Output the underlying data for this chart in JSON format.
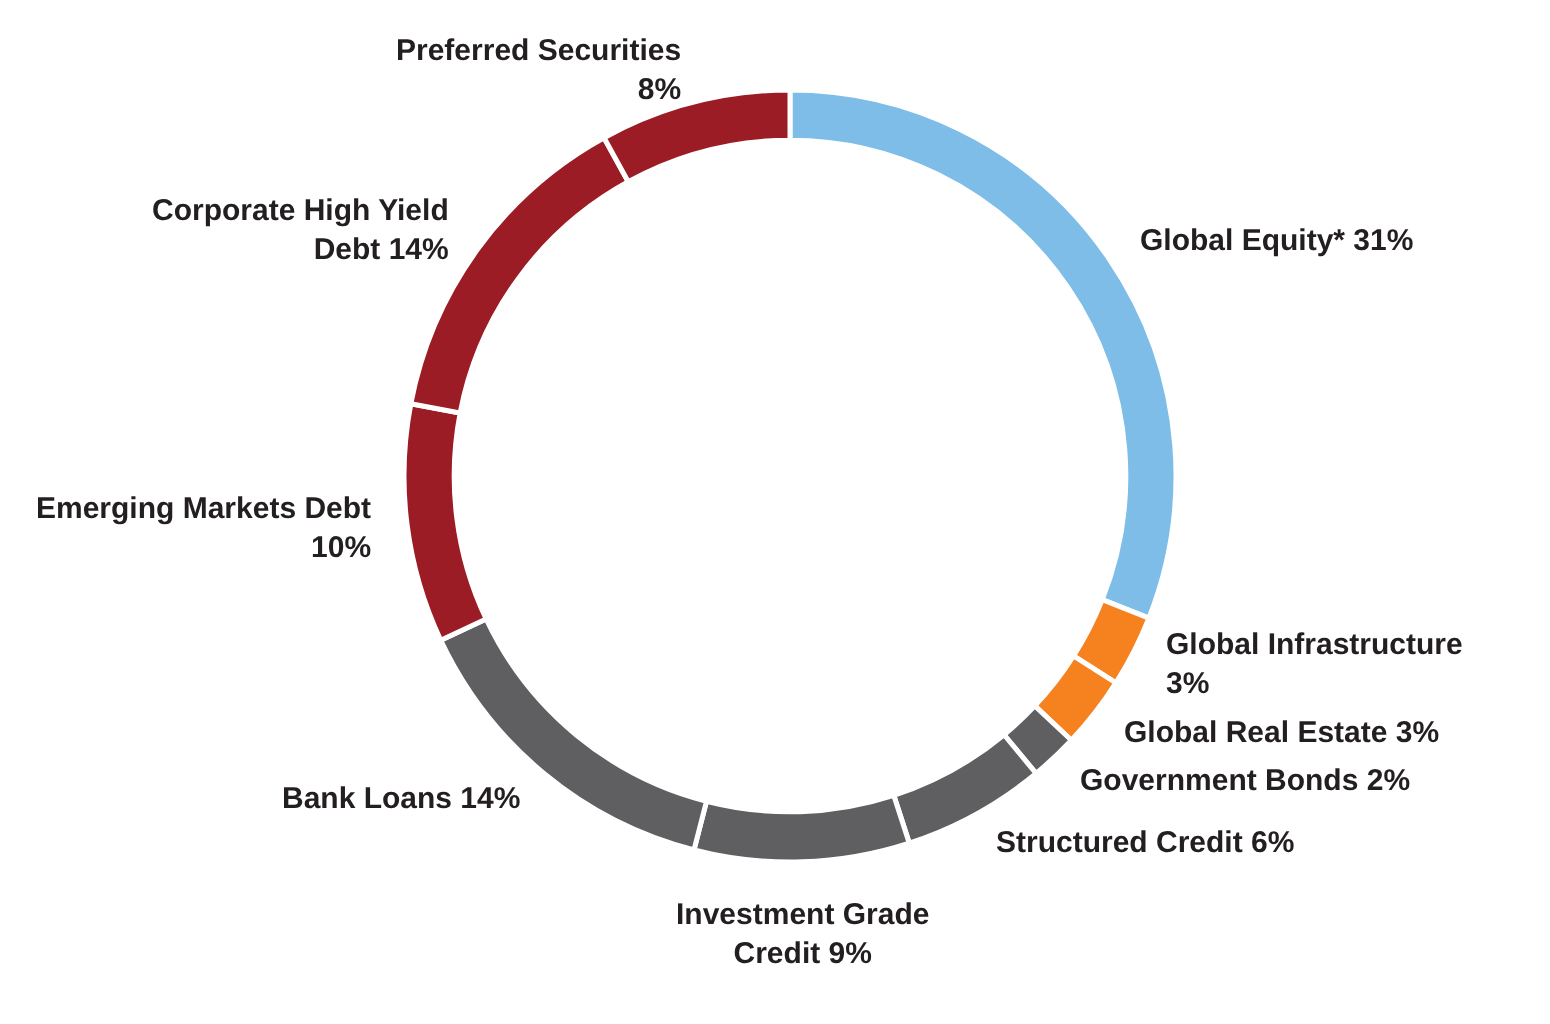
{
  "chart_data": {
    "type": "donut",
    "categories": [
      "Global Equity*",
      "Global Infrastructure",
      "Global Real Estate",
      "Government Bonds",
      "Structured Credit",
      "Investment Grade Credit",
      "Bank Loans",
      "Emerging Markets Debt",
      "Corporate High Yield Debt",
      "Preferred Securities"
    ],
    "values": [
      31,
      3,
      3,
      2,
      6,
      9,
      14,
      10,
      14,
      8
    ],
    "value_labels": [
      "31%",
      "3%",
      "3%",
      "2%",
      "6%",
      "9%",
      "14%",
      "10%",
      "14%",
      "8%"
    ],
    "colors": [
      "#7dbde8",
      "#f5821f",
      "#f5821f",
      "#5f5f61",
      "#5f5f61",
      "#5f5f61",
      "#5f5f61",
      "#9b1c24",
      "#9b1c24",
      "#9b1c24"
    ],
    "legend": false
  }
}
